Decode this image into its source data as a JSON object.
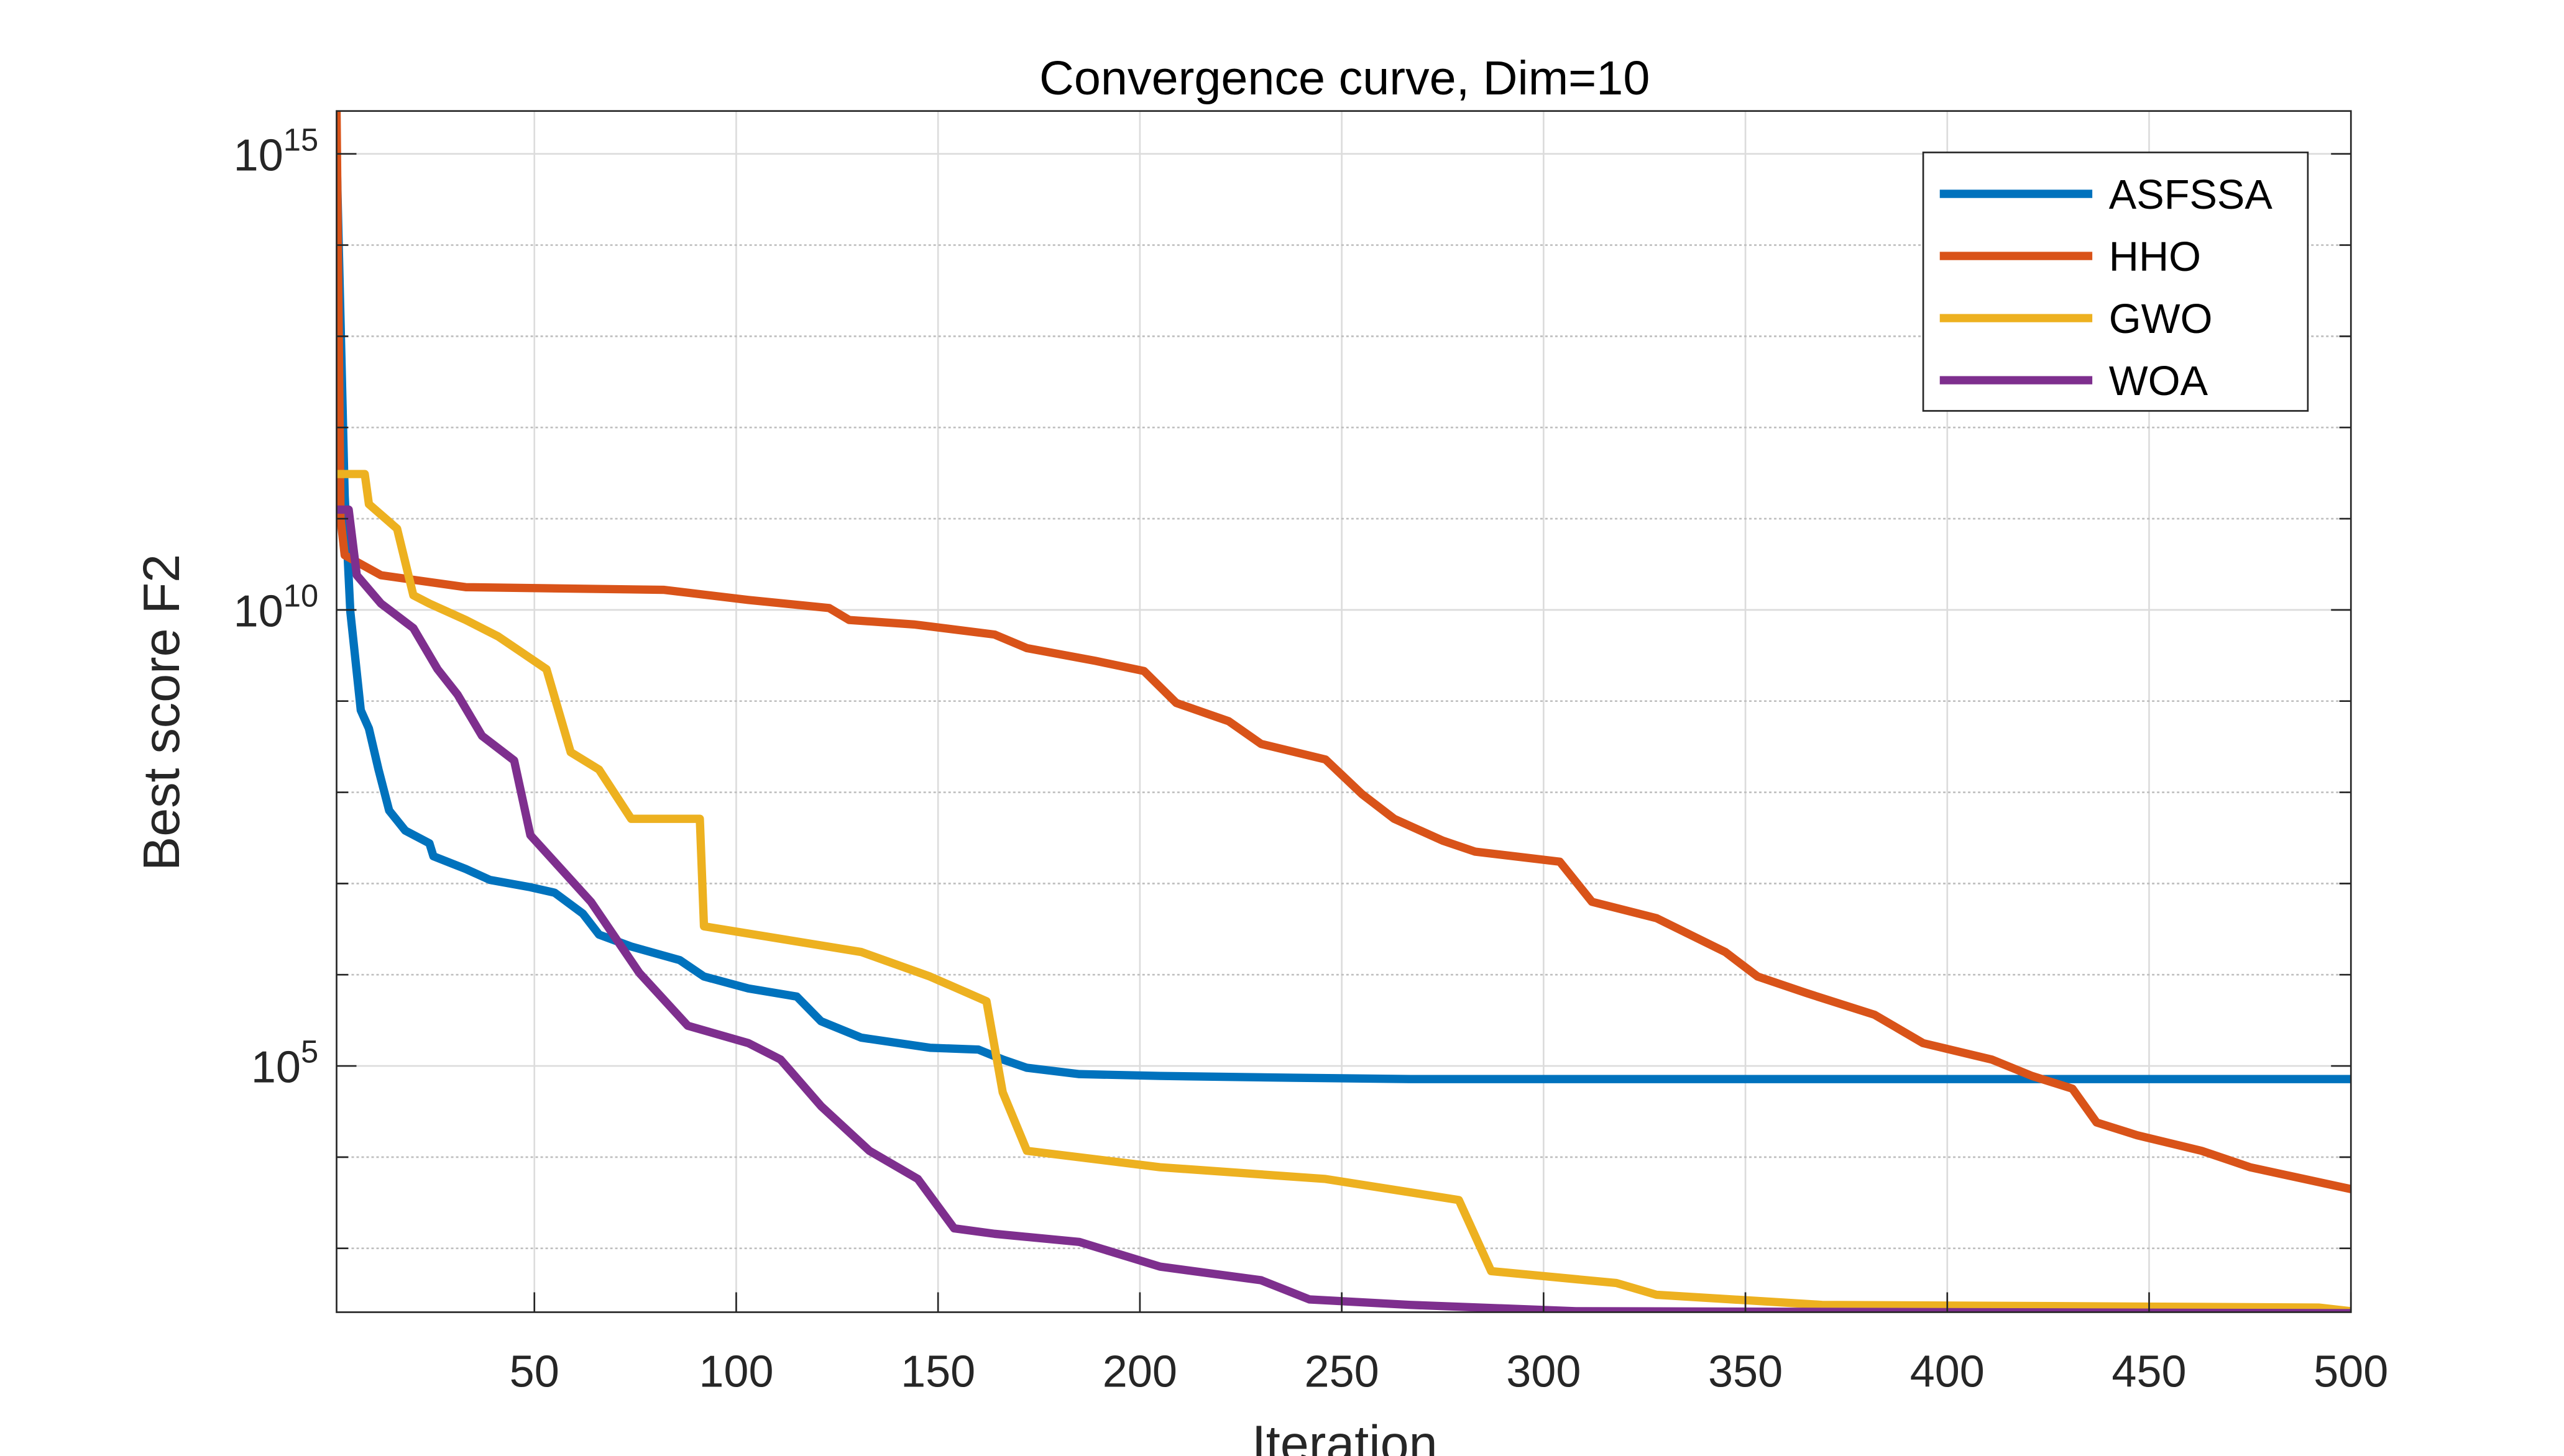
{
  "chart_data": {
    "type": "line",
    "title": "Convergence curve, Dim=10",
    "xlabel": "Iteration",
    "ylabel": "Best score F2",
    "yscale": "log",
    "xlim": [
      1,
      500
    ],
    "ylim_log10": [
      2.3,
      15.47
    ],
    "xticks": [
      50,
      100,
      150,
      200,
      250,
      300,
      350,
      400,
      450,
      500
    ],
    "yticks_major_log10": [
      5,
      10,
      15
    ],
    "ytick_labels": [
      {
        "base": "10",
        "exp": "5"
      },
      {
        "base": "10",
        "exp": "10"
      },
      {
        "base": "10",
        "exp": "15"
      }
    ],
    "yticks_minor_log10": [
      3,
      4,
      6,
      7,
      8,
      9,
      11,
      12,
      13,
      14
    ],
    "grid": true,
    "legend_position": "top-right",
    "series": [
      {
        "name": "ASFSSA",
        "color": "#0072BD",
        "x": [
          1,
          3,
          4.4,
          7,
          9,
          11.4,
          14,
          18,
          24,
          25,
          33,
          39,
          49,
          55,
          62,
          66,
          74,
          86,
          92,
          103,
          115,
          121,
          131,
          148,
          160,
          166,
          172,
          185,
          205,
          238,
          267,
          500
        ],
        "log10_y": [
          15,
          11.25,
          9.98,
          8.9,
          8.7,
          8.25,
          7.8,
          7.58,
          7.44,
          7.3,
          7.16,
          7.04,
          6.96,
          6.9,
          6.67,
          6.44,
          6.31,
          6.16,
          5.98,
          5.85,
          5.76,
          5.49,
          5.31,
          5.2,
          5.18,
          5.07,
          4.98,
          4.91,
          4.89,
          4.87,
          4.855,
          4.855
        ]
      },
      {
        "name": "HHO",
        "color": "#D95319",
        "x": [
          1,
          2,
          3,
          12,
          33,
          82,
          103,
          123,
          128,
          144,
          164,
          172,
          189,
          201,
          209,
          222,
          230,
          246,
          255,
          263,
          275,
          283,
          304,
          312,
          328,
          345,
          353,
          365,
          382,
          394,
          411,
          421,
          431,
          437,
          447,
          463,
          475,
          500
        ],
        "log10_y": [
          15.47,
          11.0,
          10.6,
          10.38,
          10.25,
          10.22,
          10.11,
          10.02,
          9.89,
          9.84,
          9.73,
          9.58,
          9.44,
          9.33,
          8.98,
          8.78,
          8.53,
          8.36,
          7.98,
          7.71,
          7.47,
          7.35,
          7.24,
          6.8,
          6.62,
          6.25,
          5.98,
          5.8,
          5.56,
          5.25,
          5.07,
          4.89,
          4.75,
          4.38,
          4.24,
          4.07,
          3.89,
          3.65
        ]
      },
      {
        "name": "GWO",
        "color": "#EDB120",
        "x": [
          1,
          8,
          9,
          16,
          20,
          24,
          33,
          41,
          47,
          53,
          59,
          66,
          74,
          91,
          92,
          131,
          148,
          162,
          166,
          172,
          205,
          246,
          279,
          287,
          318,
          328,
          369,
          492,
          500
        ],
        "log10_y": [
          11.49,
          11.49,
          11.16,
          10.89,
          10.16,
          10.07,
          9.89,
          9.71,
          9.53,
          9.35,
          8.44,
          8.25,
          7.71,
          7.71,
          6.53,
          6.25,
          5.98,
          5.71,
          4.71,
          4.07,
          3.89,
          3.76,
          3.53,
          2.75,
          2.62,
          2.49,
          2.38,
          2.35,
          2.31
        ]
      },
      {
        "name": "WOA",
        "color": "#7E2F8E",
        "x": [
          1,
          4,
          6,
          12,
          20,
          26,
          31,
          37,
          45,
          49,
          64,
          76,
          88,
          103,
          111,
          121,
          133,
          145,
          154,
          164,
          185,
          205,
          230,
          242,
          267,
          308,
          500
        ],
        "log10_y": [
          11.1,
          11.1,
          10.38,
          10.07,
          9.8,
          9.35,
          9.07,
          8.62,
          8.35,
          7.53,
          6.8,
          6.02,
          5.44,
          5.25,
          5.07,
          4.56,
          4.07,
          3.76,
          3.22,
          3.16,
          3.07,
          2.8,
          2.65,
          2.44,
          2.38,
          2.31,
          2.29
        ]
      }
    ]
  }
}
